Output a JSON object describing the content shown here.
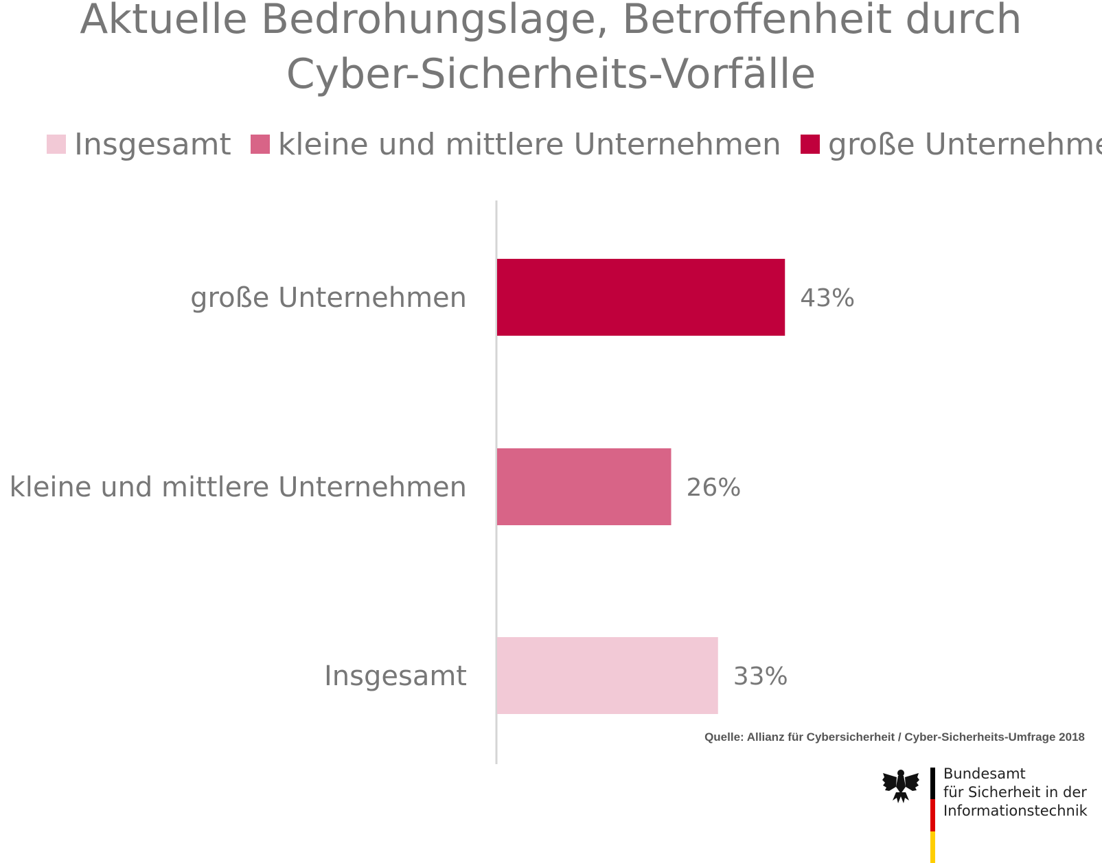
{
  "title_lines": [
    "Aktuelle Bedrohungslage, Betroffenheit durch",
    "Cyber-Sicherheits-Vorfälle"
  ],
  "legend": [
    {
      "label": "Insgesamt",
      "color": "#f2c9d6"
    },
    {
      "label": "kleine und mittlere Unternehmen",
      "color": "#d86487"
    },
    {
      "label": "große Unternehmen",
      "color": "#c0003c"
    }
  ],
  "chart_data": {
    "type": "bar",
    "orientation": "horizontal",
    "title": "Aktuelle Bedrohungslage, Betroffenheit durch Cyber-Sicherheits-Vorfälle",
    "categories": [
      "große Unternehmen",
      "kleine und mittlere Unternehmen",
      "Insgesamt"
    ],
    "values": [
      43,
      26,
      33
    ],
    "value_labels": [
      "43%",
      "26%",
      "33%"
    ],
    "colors": [
      "#c0003c",
      "#d86487",
      "#f2c9d6"
    ],
    "unit": "%",
    "xlim": [
      0,
      100
    ],
    "grid": false,
    "legend_position": "top"
  },
  "source_note": "Quelle: Allianz für Cybersicherheit / Cyber-Sicherheits-Umfrage 2018",
  "logo": {
    "lines": [
      "Bundesamt",
      "für Sicherheit in der",
      "Informationstechnik"
    ],
    "icon": "federal-eagle-icon",
    "stripe_colors": [
      "#000000",
      "#dd0000",
      "#ffce00"
    ]
  }
}
